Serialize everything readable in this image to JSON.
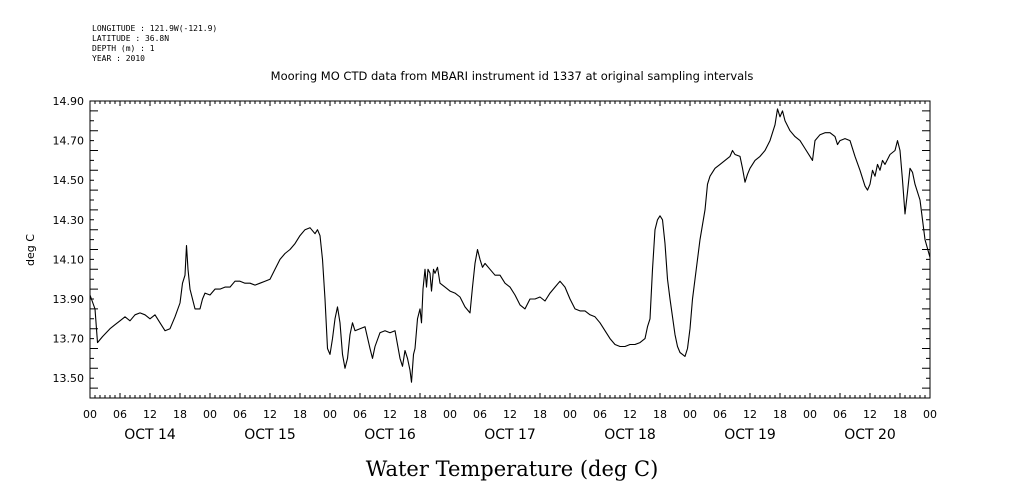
{
  "metadata": {
    "longitude": "LONGITUDE : 121.9W(-121.9)",
    "latitude": "LATITUDE : 36.8N",
    "depth": "DEPTH (m) : 1",
    "year": "YEAR : 2010"
  },
  "chart_data": {
    "type": "line",
    "title": "Mooring MO CTD data from MBARI instrument id 1337 at original sampling intervals",
    "xlabel": "Water Temperature (deg C)",
    "ylabel": "deg C",
    "ylim": [
      13.4,
      14.9
    ],
    "y_ticks": [
      "13.50",
      "13.70",
      "13.90",
      "14.10",
      "14.30",
      "14.50",
      "14.70",
      "14.90"
    ],
    "x_unit": "hours since OCT 14 00",
    "xlim": [
      0,
      168
    ],
    "x_hour_labels": [
      "00",
      "06",
      "12",
      "18",
      "00",
      "06",
      "12",
      "18",
      "00",
      "06",
      "12",
      "18",
      "00",
      "06",
      "12",
      "18",
      "00",
      "06",
      "12",
      "18",
      "00",
      "06",
      "12",
      "18",
      "00",
      "06",
      "12",
      "18",
      "00"
    ],
    "day_labels": [
      "OCT 14",
      "OCT 15",
      "OCT 16",
      "OCT 17",
      "OCT 18",
      "OCT 19",
      "OCT 20"
    ],
    "grid": false,
    "series": [
      {
        "color": "#000000",
        "points": [
          [
            0,
            13.92
          ],
          [
            1,
            13.85
          ],
          [
            1.5,
            13.68
          ],
          [
            2.5,
            13.71
          ],
          [
            4,
            13.75
          ],
          [
            5,
            13.77
          ],
          [
            6,
            13.79
          ],
          [
            7,
            13.81
          ],
          [
            8,
            13.79
          ],
          [
            9,
            13.82
          ],
          [
            10,
            13.83
          ],
          [
            11,
            13.82
          ],
          [
            12,
            13.8
          ],
          [
            13,
            13.82
          ],
          [
            14,
            13.78
          ],
          [
            15,
            13.74
          ],
          [
            16,
            13.75
          ],
          [
            17,
            13.81
          ],
          [
            18,
            13.88
          ],
          [
            18.5,
            13.98
          ],
          [
            19,
            14.02
          ],
          [
            19.3,
            14.17
          ],
          [
            19.6,
            14.05
          ],
          [
            20,
            13.95
          ],
          [
            21,
            13.85
          ],
          [
            22,
            13.85
          ],
          [
            22.5,
            13.9
          ],
          [
            23,
            13.93
          ],
          [
            24,
            13.92
          ],
          [
            25,
            13.95
          ],
          [
            26,
            13.95
          ],
          [
            27,
            13.96
          ],
          [
            28,
            13.96
          ],
          [
            29,
            13.99
          ],
          [
            30,
            13.99
          ],
          [
            31,
            13.98
          ],
          [
            32,
            13.98
          ],
          [
            33,
            13.97
          ],
          [
            34,
            13.98
          ],
          [
            35,
            13.99
          ],
          [
            36,
            14.0
          ],
          [
            37,
            14.05
          ],
          [
            38,
            14.1
          ],
          [
            39,
            14.13
          ],
          [
            40,
            14.15
          ],
          [
            41,
            14.18
          ],
          [
            42,
            14.22
          ],
          [
            43,
            14.25
          ],
          [
            44,
            14.26
          ],
          [
            45,
            14.23
          ],
          [
            45.5,
            14.25
          ],
          [
            46,
            14.22
          ],
          [
            46.5,
            14.1
          ],
          [
            47,
            13.9
          ],
          [
            47.5,
            13.65
          ],
          [
            48,
            13.62
          ],
          [
            48.5,
            13.7
          ],
          [
            49,
            13.8
          ],
          [
            49.5,
            13.86
          ],
          [
            50,
            13.78
          ],
          [
            50.5,
            13.62
          ],
          [
            51,
            13.55
          ],
          [
            51.5,
            13.6
          ],
          [
            52,
            13.72
          ],
          [
            52.5,
            13.78
          ],
          [
            53,
            13.74
          ],
          [
            54,
            13.75
          ],
          [
            55,
            13.76
          ],
          [
            56,
            13.65
          ],
          [
            56.5,
            13.6
          ],
          [
            57,
            13.66
          ],
          [
            58,
            13.73
          ],
          [
            59,
            13.74
          ],
          [
            60,
            13.73
          ],
          [
            61,
            13.74
          ],
          [
            62,
            13.6
          ],
          [
            62.5,
            13.56
          ],
          [
            63,
            13.64
          ],
          [
            63.5,
            13.6
          ],
          [
            64,
            13.54
          ],
          [
            64.3,
            13.48
          ],
          [
            64.7,
            13.62
          ],
          [
            65,
            13.65
          ],
          [
            65.5,
            13.8
          ],
          [
            66,
            13.85
          ],
          [
            66.3,
            13.78
          ],
          [
            66.6,
            13.95
          ],
          [
            67,
            14.05
          ],
          [
            67.3,
            13.96
          ],
          [
            67.6,
            14.05
          ],
          [
            68,
            14.03
          ],
          [
            68.3,
            13.94
          ],
          [
            68.7,
            14.05
          ],
          [
            69,
            14.03
          ],
          [
            69.5,
            14.06
          ],
          [
            70,
            13.98
          ],
          [
            71,
            13.96
          ],
          [
            72,
            13.94
          ],
          [
            73,
            13.93
          ],
          [
            74,
            13.91
          ],
          [
            75,
            13.86
          ],
          [
            76,
            13.83
          ],
          [
            76.5,
            13.96
          ],
          [
            77,
            14.08
          ],
          [
            77.5,
            14.15
          ],
          [
            78,
            14.1
          ],
          [
            78.5,
            14.06
          ],
          [
            79,
            14.08
          ],
          [
            80,
            14.05
          ],
          [
            81,
            14.02
          ],
          [
            82,
            14.02
          ],
          [
            83,
            13.98
          ],
          [
            84,
            13.96
          ],
          [
            85,
            13.92
          ],
          [
            86,
            13.87
          ],
          [
            87,
            13.85
          ],
          [
            88,
            13.9
          ],
          [
            89,
            13.9
          ],
          [
            90,
            13.91
          ],
          [
            91,
            13.89
          ],
          [
            92,
            13.93
          ],
          [
            93,
            13.96
          ],
          [
            94,
            13.99
          ],
          [
            95,
            13.96
          ],
          [
            96,
            13.9
          ],
          [
            97,
            13.85
          ],
          [
            98,
            13.84
          ],
          [
            99,
            13.84
          ],
          [
            100,
            13.82
          ],
          [
            101,
            13.81
          ],
          [
            102,
            13.78
          ],
          [
            103,
            13.74
          ],
          [
            104,
            13.7
          ],
          [
            105,
            13.67
          ],
          [
            106,
            13.66
          ],
          [
            107,
            13.66
          ],
          [
            108,
            13.67
          ],
          [
            109,
            13.67
          ],
          [
            110,
            13.68
          ],
          [
            111,
            13.7
          ],
          [
            111.5,
            13.76
          ],
          [
            112,
            13.8
          ],
          [
            112.5,
            14.05
          ],
          [
            113,
            14.25
          ],
          [
            113.5,
            14.3
          ],
          [
            114,
            14.32
          ],
          [
            114.5,
            14.3
          ],
          [
            115,
            14.18
          ],
          [
            115.5,
            14.0
          ],
          [
            116,
            13.9
          ],
          [
            117,
            13.72
          ],
          [
            117.5,
            13.66
          ],
          [
            118,
            13.63
          ],
          [
            118.5,
            13.62
          ],
          [
            119,
            13.61
          ],
          [
            119.5,
            13.65
          ],
          [
            120,
            13.75
          ],
          [
            120.5,
            13.9
          ],
          [
            121,
            14.0
          ],
          [
            122,
            14.2
          ],
          [
            123,
            14.35
          ],
          [
            123.5,
            14.48
          ],
          [
            124,
            14.52
          ],
          [
            125,
            14.56
          ],
          [
            126,
            14.58
          ],
          [
            127,
            14.6
          ],
          [
            128,
            14.62
          ],
          [
            128.5,
            14.65
          ],
          [
            129,
            14.63
          ],
          [
            130,
            14.62
          ],
          [
            130.5,
            14.56
          ],
          [
            131,
            14.49
          ],
          [
            131.5,
            14.53
          ],
          [
            132,
            14.56
          ],
          [
            133,
            14.6
          ],
          [
            134,
            14.62
          ],
          [
            135,
            14.65
          ],
          [
            136,
            14.7
          ],
          [
            137,
            14.78
          ],
          [
            137.5,
            14.86
          ],
          [
            138,
            14.82
          ],
          [
            138.5,
            14.85
          ],
          [
            139,
            14.8
          ],
          [
            140,
            14.75
          ],
          [
            141,
            14.72
          ],
          [
            142,
            14.7
          ],
          [
            143,
            14.66
          ],
          [
            144,
            14.62
          ],
          [
            144.5,
            14.6
          ],
          [
            145,
            14.7
          ],
          [
            146,
            14.73
          ],
          [
            147,
            14.74
          ],
          [
            148,
            14.74
          ],
          [
            149,
            14.72
          ],
          [
            149.5,
            14.68
          ],
          [
            150,
            14.7
          ],
          [
            151,
            14.71
          ],
          [
            152,
            14.7
          ],
          [
            153,
            14.62
          ],
          [
            154,
            14.55
          ],
          [
            155,
            14.47
          ],
          [
            155.5,
            14.45
          ],
          [
            156,
            14.48
          ],
          [
            156.5,
            14.55
          ],
          [
            157,
            14.52
          ],
          [
            157.5,
            14.58
          ],
          [
            158,
            14.55
          ],
          [
            158.5,
            14.6
          ],
          [
            159,
            14.58
          ],
          [
            160,
            14.63
          ],
          [
            161,
            14.65
          ],
          [
            161.5,
            14.7
          ],
          [
            162,
            14.65
          ],
          [
            162.5,
            14.5
          ],
          [
            163,
            14.33
          ],
          [
            163.5,
            14.44
          ],
          [
            164,
            14.56
          ],
          [
            164.5,
            14.54
          ],
          [
            165,
            14.48
          ],
          [
            166,
            14.4
          ],
          [
            167,
            14.2
          ],
          [
            168,
            14.11
          ]
        ]
      }
    ]
  }
}
